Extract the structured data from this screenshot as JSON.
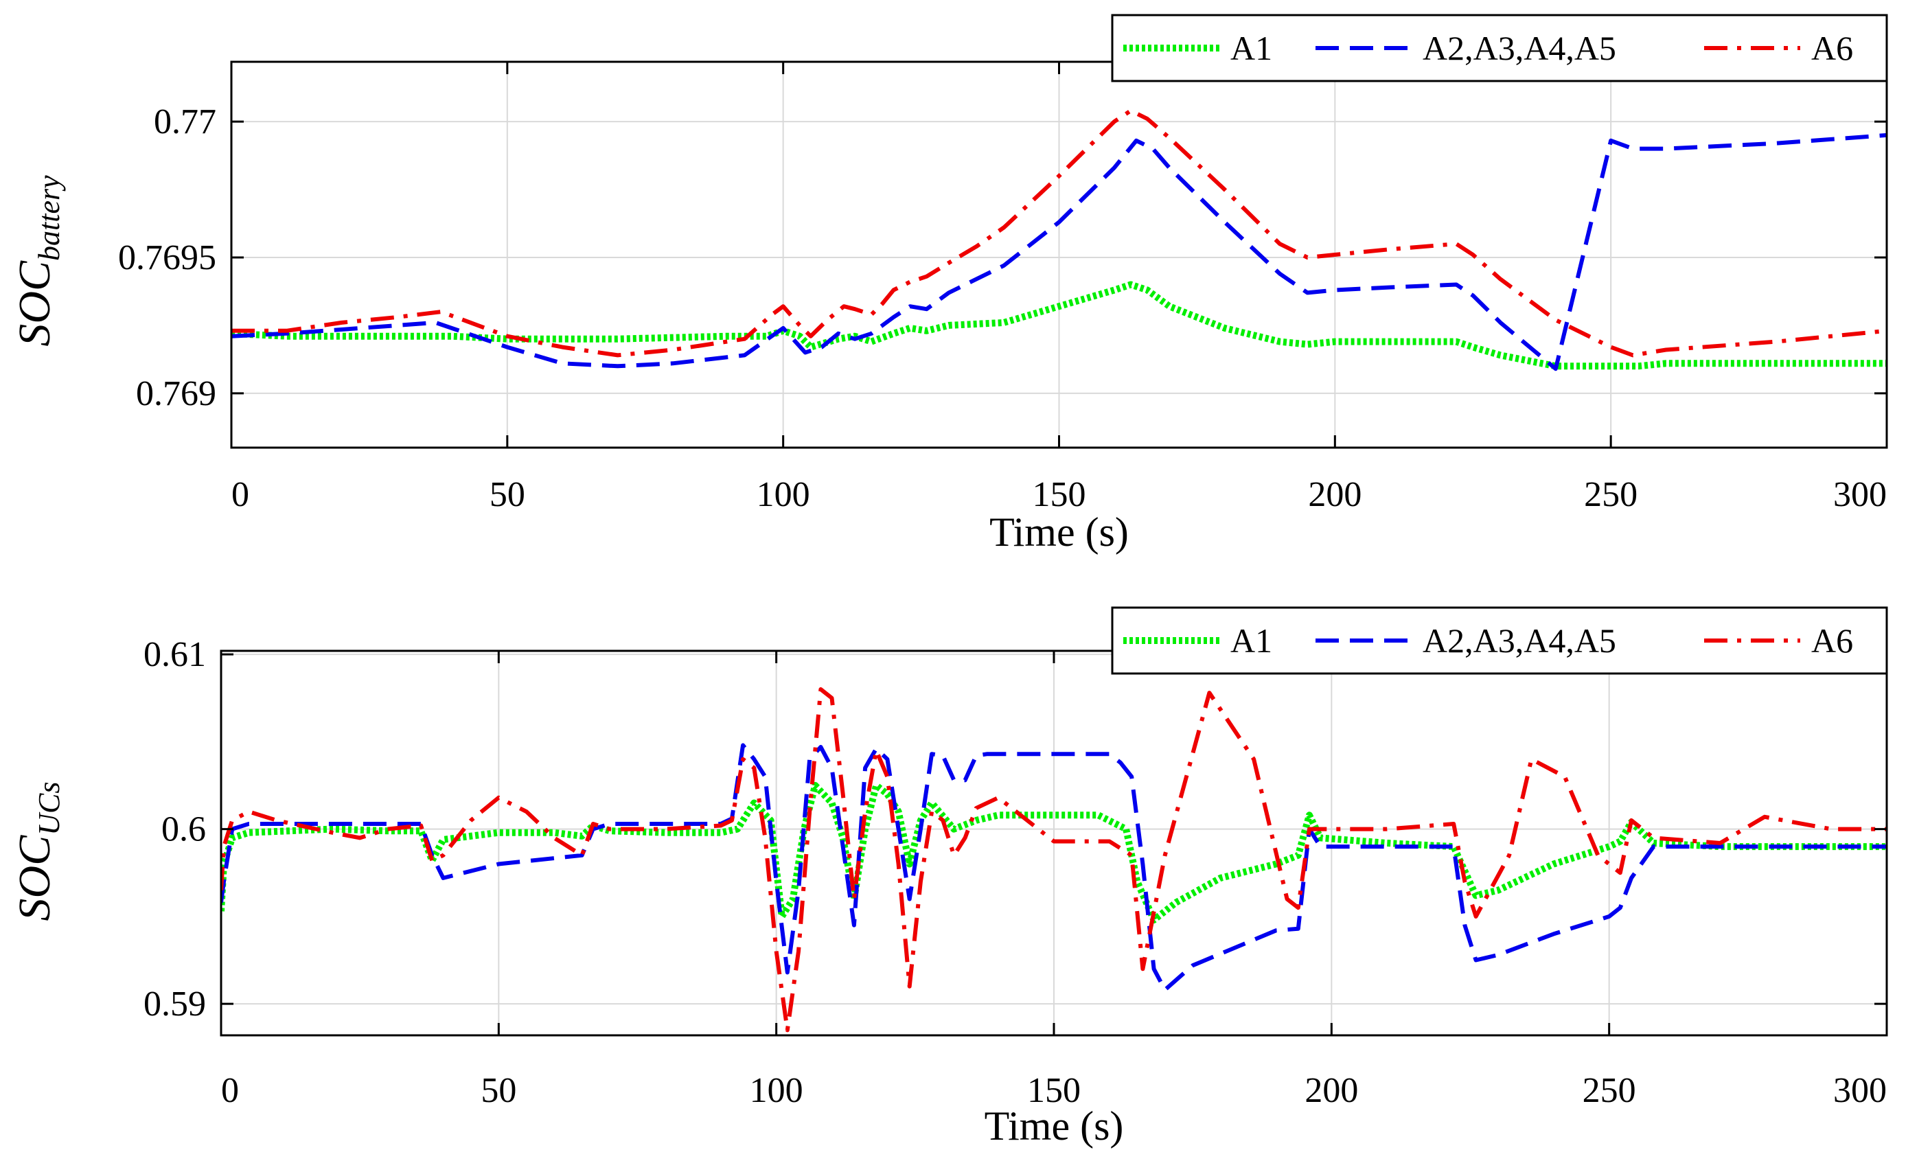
{
  "chart_data": [
    {
      "type": "line",
      "title": "",
      "xlabel": "Time (s)",
      "ylabel_main": "SOC",
      "ylabel_sub": "battery",
      "xlim": [
        0,
        300
      ],
      "ylim": [
        0.7688,
        0.77022
      ],
      "xticks": [
        0,
        50,
        100,
        150,
        200,
        250,
        300
      ],
      "xtick_labels": [
        "0",
        "50",
        "100",
        "150",
        "200",
        "250",
        "300"
      ],
      "yticks": [
        0.769,
        0.7695,
        0.77
      ],
      "ytick_labels": [
        "0.769",
        "0.7695",
        "0.77"
      ],
      "grid": true,
      "legend_position": "top-right, above plot",
      "series": [
        {
          "name": "A1",
          "style": "dotted",
          "color": "#00ee00",
          "x": [
            0,
            10,
            30,
            40,
            50,
            70,
            90,
            97,
            100,
            103,
            105,
            110,
            113,
            116,
            120,
            123,
            126,
            130,
            140,
            150,
            160,
            163,
            166,
            170,
            180,
            190,
            195,
            200,
            210,
            222,
            225,
            230,
            240,
            245,
            252,
            255,
            260,
            280,
            300
          ],
          "y": [
            0.76922,
            0.76921,
            0.76921,
            0.76921,
            0.7692,
            0.7692,
            0.76921,
            0.76921,
            0.76923,
            0.76921,
            0.76917,
            0.7692,
            0.76921,
            0.76919,
            0.76922,
            0.76924,
            0.76923,
            0.76925,
            0.76926,
            0.76932,
            0.76938,
            0.7694,
            0.76938,
            0.76932,
            0.76924,
            0.76919,
            0.76918,
            0.76919,
            0.76919,
            0.76919,
            0.76917,
            0.76914,
            0.7691,
            0.7691,
            0.7691,
            0.7691,
            0.76911,
            0.76911,
            0.76911
          ]
        },
        {
          "name": "A2,A3,A4,A5",
          "style": "dashed",
          "color": "#0000ee",
          "x": [
            0,
            10,
            37,
            50,
            60,
            70,
            80,
            93,
            100,
            104,
            107,
            110,
            113,
            116,
            118,
            120,
            123,
            126,
            130,
            135,
            140,
            150,
            160,
            164,
            167,
            170,
            180,
            190,
            195,
            200,
            210,
            222,
            225,
            230,
            240,
            250,
            254,
            260,
            280,
            300
          ],
          "y": [
            0.76921,
            0.76922,
            0.76926,
            0.76917,
            0.76911,
            0.7691,
            0.76911,
            0.76914,
            0.76924,
            0.76915,
            0.76917,
            0.76922,
            0.7692,
            0.76922,
            0.76925,
            0.76928,
            0.76932,
            0.76931,
            0.76937,
            0.76942,
            0.76947,
            0.76963,
            0.76983,
            0.76993,
            0.7699,
            0.76983,
            0.76963,
            0.76944,
            0.76937,
            0.76938,
            0.76939,
            0.7694,
            0.76936,
            0.76926,
            0.76909,
            0.76993,
            0.7699,
            0.7699,
            0.76992,
            0.76995
          ]
        },
        {
          "name": "A6",
          "style": "dashdot",
          "color": "#ee0000",
          "x": [
            0,
            10,
            20,
            30,
            38,
            50,
            60,
            70,
            80,
            93,
            98,
            100,
            103,
            105,
            108,
            111,
            113,
            116,
            118,
            120,
            123,
            126,
            130,
            135,
            140,
            150,
            160,
            163,
            166,
            170,
            180,
            190,
            195,
            200,
            210,
            222,
            225,
            230,
            240,
            250,
            254,
            260,
            280,
            300
          ],
          "y": [
            0.76923,
            0.76923,
            0.76926,
            0.76928,
            0.7693,
            0.76921,
            0.76917,
            0.76914,
            0.76916,
            0.7692,
            0.76929,
            0.76932,
            0.76925,
            0.76921,
            0.76927,
            0.76932,
            0.76931,
            0.76929,
            0.76933,
            0.76938,
            0.76941,
            0.76943,
            0.76948,
            0.76954,
            0.76961,
            0.7698,
            0.77,
            0.77004,
            0.77001,
            0.76994,
            0.76975,
            0.76955,
            0.7695,
            0.76951,
            0.76953,
            0.76955,
            0.76951,
            0.76942,
            0.76927,
            0.76917,
            0.76914,
            0.76916,
            0.76919,
            0.76923
          ]
        }
      ]
    },
    {
      "type": "line",
      "title": "",
      "xlabel": "Time (s)",
      "ylabel_main": "SOC",
      "ylabel_sub": "UCs",
      "xlim": [
        0,
        300
      ],
      "ylim": [
        0.5882,
        0.6102
      ],
      "xticks": [
        0,
        50,
        100,
        150,
        200,
        250,
        300
      ],
      "xtick_labels": [
        "0",
        "50",
        "100",
        "150",
        "200",
        "250",
        "300"
      ],
      "yticks": [
        0.59,
        0.6,
        0.61
      ],
      "ytick_labels": [
        "0.59",
        "0.6",
        "0.61"
      ],
      "grid": true,
      "legend_position": "top-right, above plot",
      "series": [
        {
          "name": "A1",
          "style": "dotted",
          "color": "#00ee00",
          "x": [
            0,
            0.5,
            2,
            5,
            20,
            30,
            36,
            38,
            40,
            50,
            60,
            65,
            67,
            70,
            80,
            90,
            93,
            96,
            99,
            101,
            103,
            105,
            107,
            110,
            112,
            114,
            116,
            118,
            120,
            122,
            124,
            126,
            128,
            132,
            136,
            140,
            150,
            158,
            163,
            165,
            168,
            172,
            180,
            190,
            194,
            196,
            198,
            210,
            222,
            226,
            230,
            240,
            250,
            252,
            254,
            258,
            270,
            300
          ],
          "y": [
            0.5953,
            0.598,
            0.5995,
            0.5998,
            0.6,
            0.5999,
            0.5999,
            0.5982,
            0.5994,
            0.5998,
            0.5998,
            0.5996,
            0.6002,
            0.5999,
            0.5998,
            0.5998,
            0.6,
            0.6015,
            0.6005,
            0.595,
            0.596,
            0.6,
            0.6025,
            0.6015,
            0.5995,
            0.596,
            0.6,
            0.6025,
            0.602,
            0.601,
            0.598,
            0.6005,
            0.6015,
            0.6,
            0.6005,
            0.6008,
            0.6008,
            0.6008,
            0.6,
            0.597,
            0.5948,
            0.5958,
            0.5972,
            0.598,
            0.5985,
            0.6008,
            0.5995,
            0.5992,
            0.599,
            0.5962,
            0.5965,
            0.598,
            0.599,
            0.5993,
            0.6004,
            0.5992,
            0.599,
            0.599
          ]
        },
        {
          "name": "A2,A3,A4,A5",
          "style": "dashed",
          "color": "#0000ee",
          "x": [
            0,
            0.5,
            2,
            5,
            20,
            30,
            36,
            38,
            40,
            50,
            65,
            67,
            70,
            80,
            90,
            92,
            94,
            96,
            98,
            100,
            102,
            104,
            106,
            108,
            110,
            112,
            114,
            116,
            118,
            120,
            122,
            124,
            126,
            128,
            130,
            132,
            134,
            136,
            138,
            150,
            160,
            162,
            164,
            166,
            168,
            170,
            175,
            190,
            194,
            196,
            198,
            210,
            222,
            224,
            226,
            230,
            240,
            250,
            252,
            254,
            258,
            300
          ],
          "y": [
            0.5958,
            0.597,
            0.6,
            0.6003,
            0.6003,
            0.6003,
            0.6003,
            0.5985,
            0.5972,
            0.598,
            0.5985,
            0.6,
            0.6003,
            0.6003,
            0.6003,
            0.6006,
            0.6048,
            0.604,
            0.603,
            0.597,
            0.5918,
            0.5965,
            0.604,
            0.6047,
            0.6035,
            0.599,
            0.5945,
            0.6035,
            0.6046,
            0.604,
            0.6,
            0.596,
            0.6,
            0.6043,
            0.6042,
            0.6028,
            0.6028,
            0.6042,
            0.6043,
            0.6043,
            0.6043,
            0.6038,
            0.603,
            0.598,
            0.592,
            0.5908,
            0.5922,
            0.5942,
            0.5943,
            0.6,
            0.599,
            0.599,
            0.599,
            0.5945,
            0.5925,
            0.5928,
            0.594,
            0.595,
            0.5955,
            0.5972,
            0.599,
            0.599
          ]
        },
        {
          "name": "A6",
          "style": "dashdot",
          "color": "#ee0000",
          "x": [
            0,
            0.5,
            2,
            5,
            10,
            20,
            25,
            30,
            36,
            38,
            40,
            45,
            50,
            55,
            60,
            65,
            67,
            70,
            80,
            90,
            92,
            94,
            96,
            98,
            100,
            102,
            104,
            106,
            108,
            110,
            112,
            114,
            116,
            118,
            120,
            122,
            124,
            126,
            128,
            130,
            132,
            134,
            136,
            140,
            150,
            160,
            164,
            166,
            170,
            178,
            186,
            192,
            194,
            196,
            198,
            210,
            222,
            224,
            226,
            232,
            236,
            242,
            248,
            252,
            254,
            258,
            270,
            278,
            290,
            300
          ],
          "y": [
            0.5965,
            0.599,
            0.6005,
            0.601,
            0.6005,
            0.5998,
            0.5995,
            0.6,
            0.6002,
            0.5982,
            0.5985,
            0.6005,
            0.6018,
            0.601,
            0.5995,
            0.5985,
            0.6003,
            0.6,
            0.6,
            0.6002,
            0.6005,
            0.604,
            0.6035,
            0.5995,
            0.593,
            0.5885,
            0.593,
            0.601,
            0.608,
            0.6075,
            0.602,
            0.596,
            0.601,
            0.6045,
            0.603,
            0.598,
            0.591,
            0.597,
            0.601,
            0.6005,
            0.5985,
            0.5995,
            0.6012,
            0.6018,
            0.5993,
            0.5993,
            0.5985,
            0.592,
            0.5985,
            0.6078,
            0.604,
            0.596,
            0.5955,
            0.6,
            0.6,
            0.6,
            0.6003,
            0.597,
            0.595,
            0.5985,
            0.604,
            0.603,
            0.5985,
            0.5975,
            0.6005,
            0.5995,
            0.5992,
            0.6007,
            0.6,
            0.6
          ]
        }
      ]
    }
  ]
}
